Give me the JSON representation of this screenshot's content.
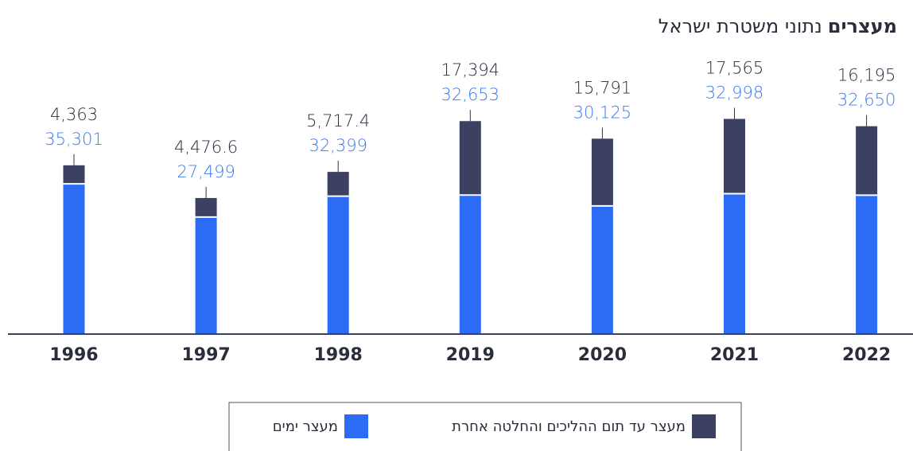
{
  "chart_data": {
    "type": "stacked_bar",
    "title": "מעצרים",
    "subtitle": "נתוני משטרת ישראל",
    "categories": [
      "1996",
      "1997",
      "1998",
      "2019",
      "2020",
      "2021",
      "2022"
    ],
    "series": [
      {
        "name": "מעצר ימים",
        "color": "#2c6cf5",
        "values": [
          35301,
          27499,
          32399,
          32653,
          30125,
          32998,
          32650
        ],
        "value_labels": [
          "35,301",
          "27,499",
          "32,399",
          "32,653",
          "30,125",
          "32,998",
          "32,650"
        ]
      },
      {
        "name": "מעצר עד תום ההליכים והחלטה אחרת",
        "color": "#3d4161",
        "values": [
          4363,
          4476.6,
          5717.4,
          17394,
          15791,
          17565,
          16195
        ],
        "value_labels": [
          "4,363",
          "4,476.6",
          "5,717.4",
          "17,394",
          "15,791",
          "17,565",
          "16,195"
        ]
      }
    ],
    "ylim": [
      0,
      60000
    ]
  }
}
